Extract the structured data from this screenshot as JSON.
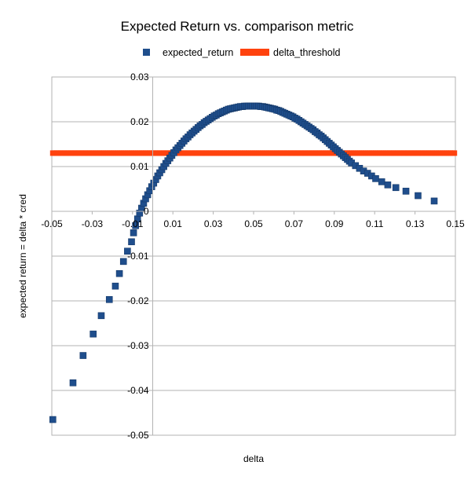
{
  "chart_data": {
    "type": "scatter",
    "title": "Expected Return vs. comparison metric",
    "xlabel": "delta",
    "ylabel": "expected return = delta * cred",
    "xlim": [
      -0.05,
      0.15
    ],
    "ylim": [
      -0.05,
      0.03
    ],
    "x_ticks": [
      -0.05,
      -0.03,
      -0.01,
      0.01,
      0.03,
      0.05,
      0.07,
      0.09,
      0.11,
      0.13,
      0.15
    ],
    "x_tick_labels": [
      "-0.05",
      "-0.03",
      "-0.01",
      "0.01",
      "0.03",
      "0.05",
      "0.07",
      "0.09",
      "0.11",
      "0.13",
      "0.15"
    ],
    "y_ticks": [
      0.03,
      0.02,
      0.01,
      0,
      -0.01,
      -0.02,
      -0.03,
      -0.04,
      -0.05
    ],
    "y_tick_labels": [
      "0.03",
      "0.02",
      "0.01",
      "0",
      "-0.01",
      "-0.02",
      "-0.03",
      "-0.04",
      "-0.05"
    ],
    "grid": "horizontal",
    "legend_position": "top",
    "series": [
      {
        "name": "expected_return",
        "color": "#1f4e8c",
        "marker": "square",
        "points": [
          [
            -0.0495,
            -0.0465
          ],
          [
            -0.0395,
            -0.0383
          ],
          [
            -0.0345,
            -0.0322
          ],
          [
            -0.0295,
            -0.0274
          ],
          [
            -0.0255,
            -0.0233
          ],
          [
            -0.0215,
            -0.0197
          ],
          [
            -0.0185,
            -0.0167
          ],
          [
            -0.0165,
            -0.0139
          ],
          [
            -0.0145,
            -0.0112
          ],
          [
            -0.0125,
            -0.0089
          ],
          [
            -0.0105,
            -0.0068
          ],
          [
            -0.0095,
            -0.0048
          ],
          [
            -0.0085,
            -0.0032
          ],
          [
            -0.0075,
            -0.0017
          ],
          [
            -0.0065,
            -0.0004
          ],
          [
            -0.0055,
            0.0007
          ],
          [
            -0.0045,
            0.0018
          ],
          [
            -0.0035,
            0.0028
          ],
          [
            -0.0025,
            0.0037
          ],
          [
            -0.0015,
            0.0046
          ],
          [
            -0.0005,
            0.0055
          ],
          [
            0.0005,
            0.0063
          ],
          [
            0.0015,
            0.0071
          ],
          [
            0.0025,
            0.0079
          ],
          [
            0.0035,
            0.0086
          ],
          [
            0.0045,
            0.0093
          ],
          [
            0.0055,
            0.01
          ],
          [
            0.0065,
            0.0107
          ],
          [
            0.0075,
            0.0113
          ],
          [
            0.0085,
            0.0119
          ],
          [
            0.0095,
            0.0125
          ],
          [
            0.0105,
            0.0131
          ],
          [
            0.0115,
            0.0137
          ],
          [
            0.0125,
            0.0142
          ],
          [
            0.0135,
            0.0147
          ],
          [
            0.0145,
            0.0152
          ],
          [
            0.0155,
            0.0157
          ],
          [
            0.0165,
            0.0162
          ],
          [
            0.0175,
            0.0166
          ],
          [
            0.0185,
            0.0171
          ],
          [
            0.0195,
            0.0175
          ],
          [
            0.0205,
            0.0179
          ],
          [
            0.0215,
            0.0183
          ],
          [
            0.0225,
            0.0187
          ],
          [
            0.0235,
            0.0191
          ],
          [
            0.0245,
            0.0194
          ],
          [
            0.0255,
            0.0198
          ],
          [
            0.0265,
            0.0201
          ],
          [
            0.0275,
            0.0204
          ],
          [
            0.0285,
            0.0207
          ],
          [
            0.0295,
            0.021
          ],
          [
            0.0305,
            0.0213
          ],
          [
            0.0315,
            0.0215
          ],
          [
            0.0325,
            0.0218
          ],
          [
            0.0335,
            0.022
          ],
          [
            0.0345,
            0.0222
          ],
          [
            0.0355,
            0.0224
          ],
          [
            0.0365,
            0.0226
          ],
          [
            0.0375,
            0.0228
          ],
          [
            0.0385,
            0.0229
          ],
          [
            0.0395,
            0.023
          ],
          [
            0.0405,
            0.0231
          ],
          [
            0.0415,
            0.0232
          ],
          [
            0.0425,
            0.0233
          ],
          [
            0.0435,
            0.0234
          ],
          [
            0.0445,
            0.0234
          ],
          [
            0.0455,
            0.0235
          ],
          [
            0.0465,
            0.0235
          ],
          [
            0.0475,
            0.0235
          ],
          [
            0.0485,
            0.0235
          ],
          [
            0.0495,
            0.0235
          ],
          [
            0.0505,
            0.0235
          ],
          [
            0.0515,
            0.0235
          ],
          [
            0.0525,
            0.0235
          ],
          [
            0.0535,
            0.0234
          ],
          [
            0.0545,
            0.0234
          ],
          [
            0.0555,
            0.0233
          ],
          [
            0.0565,
            0.0232
          ],
          [
            0.0575,
            0.0231
          ],
          [
            0.0585,
            0.023
          ],
          [
            0.0595,
            0.0229
          ],
          [
            0.0605,
            0.0228
          ],
          [
            0.0615,
            0.0226
          ],
          [
            0.0625,
            0.0225
          ],
          [
            0.0635,
            0.0223
          ],
          [
            0.0645,
            0.0221
          ],
          [
            0.0655,
            0.0219
          ],
          [
            0.0665,
            0.0217
          ],
          [
            0.0675,
            0.0215
          ],
          [
            0.0685,
            0.0213
          ],
          [
            0.0695,
            0.0211
          ],
          [
            0.0705,
            0.0208
          ],
          [
            0.0715,
            0.0206
          ],
          [
            0.0725,
            0.0203
          ],
          [
            0.0735,
            0.02
          ],
          [
            0.0745,
            0.0197
          ],
          [
            0.0755,
            0.0194
          ],
          [
            0.0765,
            0.0191
          ],
          [
            0.0775,
            0.0188
          ],
          [
            0.0785,
            0.0185
          ],
          [
            0.0795,
            0.0182
          ],
          [
            0.0805,
            0.0178
          ],
          [
            0.0815,
            0.0175
          ],
          [
            0.0825,
            0.0171
          ],
          [
            0.0835,
            0.0168
          ],
          [
            0.0845,
            0.0164
          ],
          [
            0.0855,
            0.016
          ],
          [
            0.0865,
            0.0156
          ],
          [
            0.0875,
            0.0152
          ],
          [
            0.0885,
            0.0148
          ],
          [
            0.0895,
            0.0144
          ],
          [
            0.0905,
            0.014
          ],
          [
            0.0915,
            0.0136
          ],
          [
            0.0925,
            0.0132
          ],
          [
            0.0935,
            0.0128
          ],
          [
            0.0945,
            0.0124
          ],
          [
            0.0955,
            0.012
          ],
          [
            0.0965,
            0.0116
          ],
          [
            0.0975,
            0.0112
          ],
          [
            0.0985,
            0.0108
          ],
          [
            0.1005,
            0.0102
          ],
          [
            0.1025,
            0.0096
          ],
          [
            0.1045,
            0.009
          ],
          [
            0.1065,
            0.0085
          ],
          [
            0.1085,
            0.0079
          ],
          [
            0.1105,
            0.0073
          ],
          [
            0.1135,
            0.0066
          ],
          [
            0.1165,
            0.0059
          ],
          [
            0.1205,
            0.0053
          ],
          [
            0.1255,
            0.0045
          ],
          [
            0.1315,
            0.0035
          ],
          [
            0.1395,
            0.0023
          ]
        ]
      },
      {
        "name": "delta_threshold",
        "color": "#ff420e",
        "marker": "square",
        "constant_y": 0.013,
        "x_start": -0.0495,
        "x_end": 0.1495,
        "x_step": 0.001
      }
    ]
  }
}
